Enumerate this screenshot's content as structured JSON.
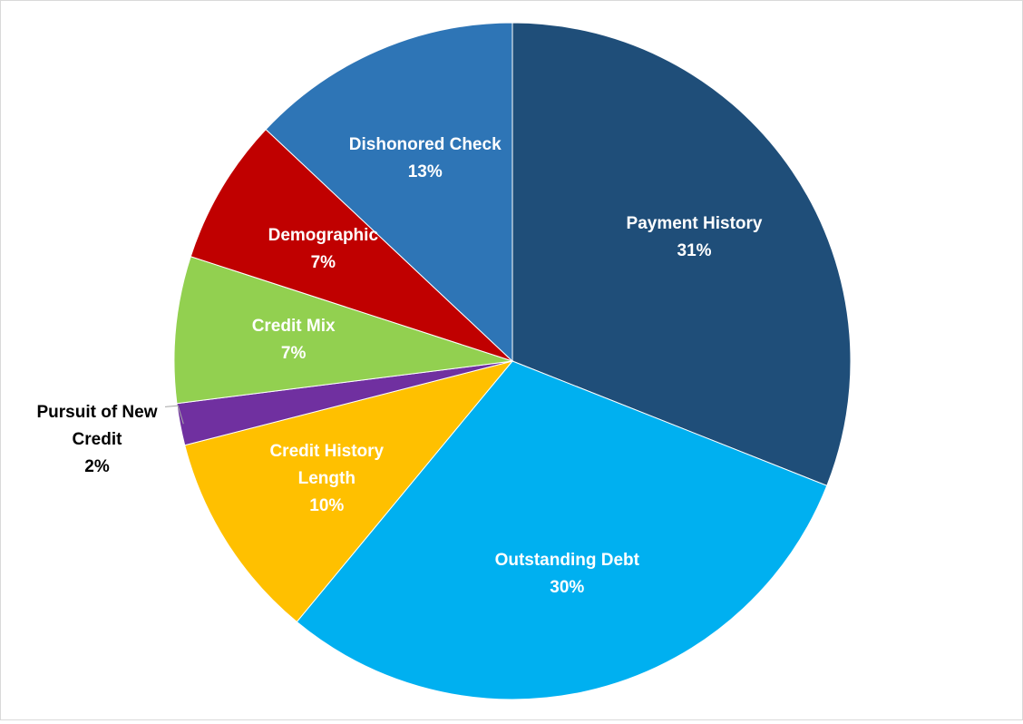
{
  "chart_data": {
    "type": "pie",
    "categories": [
      "Payment History",
      "Outstanding Debt",
      "Credit History Length",
      "Pursuit of New Credit",
      "Credit Mix",
      "Demographic",
      "Dishonored Check"
    ],
    "values": [
      31,
      30,
      10,
      2,
      7,
      7,
      13
    ],
    "value_labels": [
      "31%",
      "30%",
      "10%",
      "2%",
      "7%",
      "7%",
      "13%"
    ],
    "colors": [
      "#1f4e79",
      "#00b0f0",
      "#ffc000",
      "#7030a0",
      "#92d050",
      "#c00000",
      "#2e75b6"
    ]
  }
}
